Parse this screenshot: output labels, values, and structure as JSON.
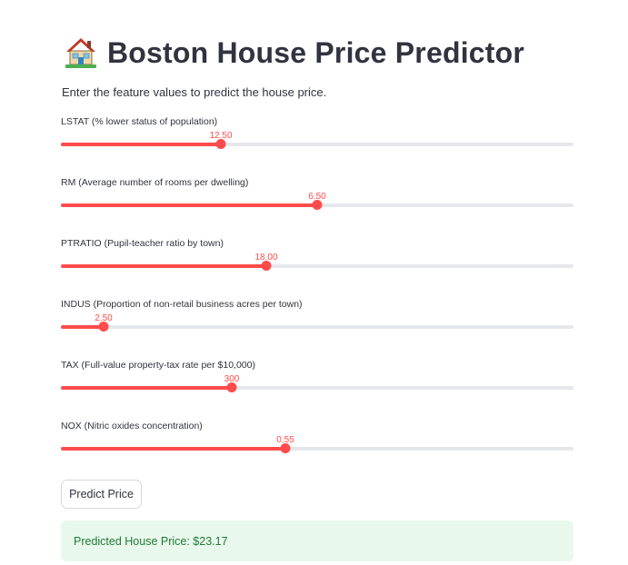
{
  "app": {
    "title": "Boston House Price Predictor",
    "title_icon": "house-with-garden-emoji",
    "subtitle": "Enter the feature values to predict the house price."
  },
  "sliders": [
    {
      "label": "LSTAT (% lower status of population)",
      "value": "12.50",
      "fraction": 0.312
    },
    {
      "label": "RM (Average number of rooms per dwelling)",
      "value": "6.50",
      "fraction": 0.5
    },
    {
      "label": "PTRATIO (Pupil-teacher ratio by town)",
      "value": "18.00",
      "fraction": 0.4
    },
    {
      "label": "INDUS (Proportion of non-retail business acres per town)",
      "value": "2.50",
      "fraction": 0.083
    },
    {
      "label": "TAX (Full-value property-tax rate per $10,000)",
      "value": "300",
      "fraction": 0.333
    },
    {
      "label": "NOX (Nitric oxides concentration)",
      "value": "0.55",
      "fraction": 0.438
    }
  ],
  "predict_button": {
    "label": "Predict Price"
  },
  "result": {
    "text": "Predicted House Price: $23.17"
  },
  "colors": {
    "accent": "#ff4b4b",
    "track": "#e6e7ec",
    "text": "#31333f",
    "success_bg": "#e9f8ec",
    "success_text": "#1f7a36"
  }
}
